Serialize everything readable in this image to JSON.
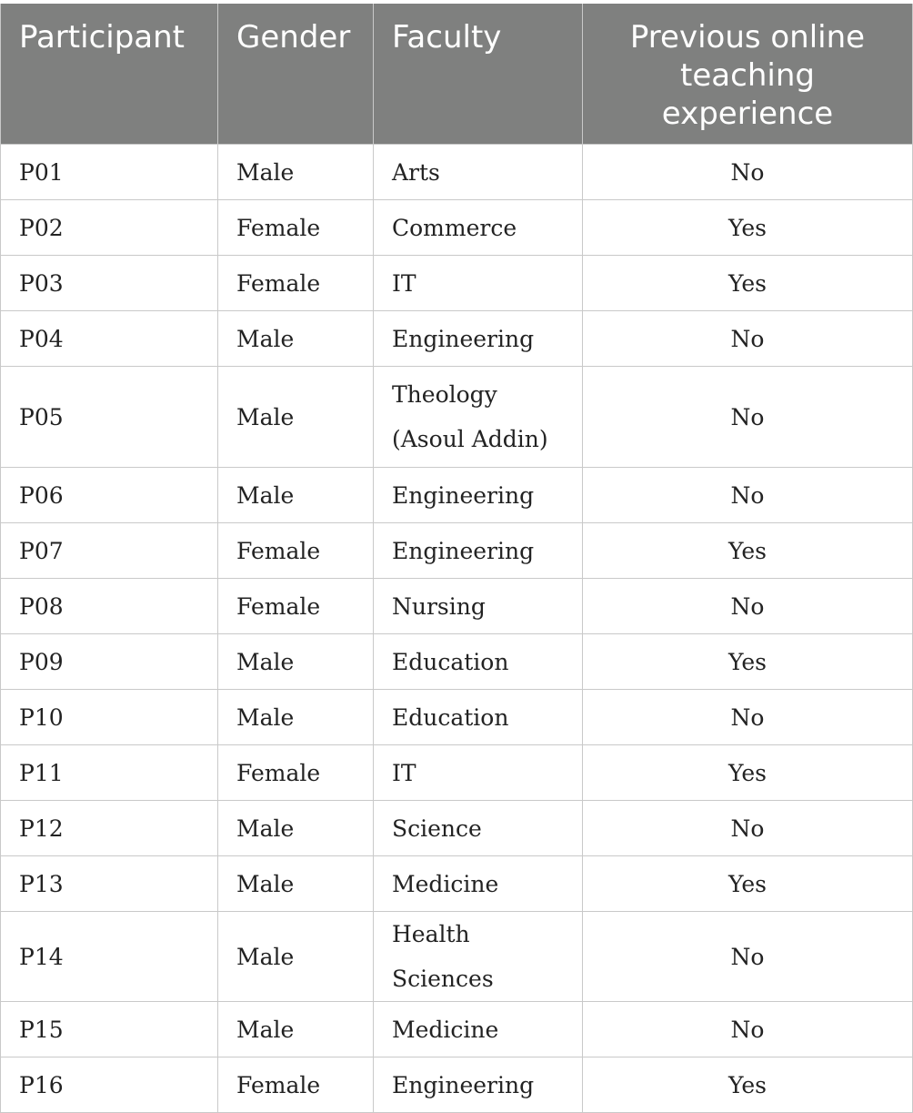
{
  "table": {
    "headers": [
      "Participant",
      "Gender",
      "Faculty",
      "Previous online teaching experience"
    ],
    "rows": [
      {
        "participant": "P01",
        "gender": "Male",
        "faculty": "Arts",
        "experience": "No"
      },
      {
        "participant": "P02",
        "gender": "Female",
        "faculty": "Commerce",
        "experience": "Yes"
      },
      {
        "participant": "P03",
        "gender": "Female",
        "faculty": "IT",
        "experience": "Yes"
      },
      {
        "participant": "P04",
        "gender": "Male",
        "faculty": "Engineering",
        "experience": "No"
      },
      {
        "participant": "P05",
        "gender": "Male",
        "faculty": "Theology (Asoul Addin)",
        "experience": "No"
      },
      {
        "participant": "P06",
        "gender": "Male",
        "faculty": "Engineering",
        "experience": "No"
      },
      {
        "participant": "P07",
        "gender": "Female",
        "faculty": "Engineering",
        "experience": "Yes"
      },
      {
        "participant": "P08",
        "gender": "Female",
        "faculty": "Nursing",
        "experience": "No"
      },
      {
        "participant": "P09",
        "gender": "Male",
        "faculty": "Education",
        "experience": "Yes"
      },
      {
        "participant": "P10",
        "gender": "Male",
        "faculty": "Education",
        "experience": "No"
      },
      {
        "participant": "P11",
        "gender": "Female",
        "faculty": "IT",
        "experience": "Yes"
      },
      {
        "participant": "P12",
        "gender": "Male",
        "faculty": "Science",
        "experience": "No"
      },
      {
        "participant": "P13",
        "gender": "Male",
        "faculty": "Medicine",
        "experience": "Yes"
      },
      {
        "participant": "P14",
        "gender": "Male",
        "faculty": "Health Sciences",
        "experience": "No"
      },
      {
        "participant": "P15",
        "gender": "Male",
        "faculty": "Medicine",
        "experience": "No"
      },
      {
        "participant": "P16",
        "gender": "Female",
        "faculty": "Engineering",
        "experience": "Yes"
      }
    ]
  }
}
